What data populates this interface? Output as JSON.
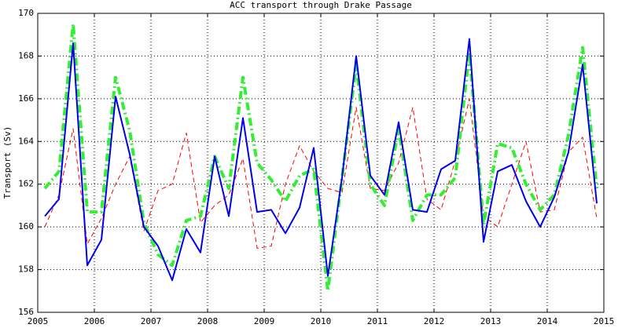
{
  "chart_data": {
    "type": "line",
    "title": "ACC transport through Drake Passage",
    "ylabel": "Transport (Sv)",
    "x": [
      2005.125,
      2005.375,
      2005.625,
      2005.875,
      2006.125,
      2006.375,
      2006.625,
      2006.875,
      2007.125,
      2007.375,
      2007.625,
      2007.875,
      2008.125,
      2008.375,
      2008.625,
      2008.875,
      2009.125,
      2009.375,
      2009.625,
      2009.875,
      2010.125,
      2010.375,
      2010.625,
      2010.875,
      2011.125,
      2011.375,
      2011.625,
      2011.875,
      2012.125,
      2012.375,
      2012.625,
      2012.875,
      2013.125,
      2013.375,
      2013.625,
      2013.875,
      2014.125,
      2014.375,
      2014.625,
      2014.875
    ],
    "series": [
      {
        "color": "#ff0000",
        "linestyle": "dashed",
        "linewidth": 1,
        "values": [
          160.0,
          161.5,
          164.6,
          159.2,
          160.4,
          162.0,
          163.3,
          159.8,
          161.7,
          162.0,
          164.4,
          160.2,
          161.0,
          161.5,
          163.2,
          159.0,
          159.1,
          162.0,
          163.8,
          162.6,
          161.8,
          161.6,
          165.6,
          161.8,
          161.7,
          163.0,
          165.6,
          161.3,
          160.8,
          163.1,
          166.0,
          160.5,
          160.0,
          162.0,
          164.0,
          160.7,
          160.8,
          163.5,
          164.2,
          160.4
        ]
      },
      {
        "color": "#33ee33",
        "linestyle": "dashdot",
        "linewidth": 4,
        "values": [
          161.8,
          162.6,
          169.5,
          160.7,
          160.7,
          167.0,
          164.5,
          160.2,
          158.7,
          158.2,
          160.3,
          160.5,
          163.3,
          161.8,
          167.0,
          163.0,
          162.2,
          161.2,
          162.4,
          162.7,
          157.0,
          162.3,
          167.6,
          162.0,
          161.0,
          164.6,
          160.3,
          161.5,
          161.5,
          162.3,
          168.2,
          160.1,
          163.9,
          163.7,
          162.0,
          160.8,
          161.5,
          164.3,
          168.4,
          161.8
        ]
      },
      {
        "color": "#0000ee",
        "linestyle": "solid",
        "linewidth": 2,
        "values": [
          160.5,
          161.3,
          168.6,
          158.2,
          159.4,
          166.1,
          163.4,
          160.0,
          159.1,
          157.5,
          159.9,
          158.8,
          163.3,
          160.5,
          165.1,
          160.7,
          160.8,
          159.7,
          160.9,
          163.7,
          157.7,
          162.3,
          168.0,
          162.4,
          161.5,
          164.9,
          160.8,
          160.7,
          162.7,
          163.1,
          168.8,
          159.3,
          162.6,
          162.9,
          161.2,
          160.0,
          161.4,
          163.5,
          167.6,
          161.1
        ]
      }
    ],
    "xlim": [
      2005,
      2015
    ],
    "xticks": [
      2005,
      2006,
      2007,
      2008,
      2009,
      2010,
      2011,
      2012,
      2013,
      2014,
      2015
    ],
    "ylim": [
      156,
      170
    ],
    "yticks": [
      156,
      158,
      160,
      162,
      164,
      166,
      168,
      170
    ],
    "grid": true
  }
}
